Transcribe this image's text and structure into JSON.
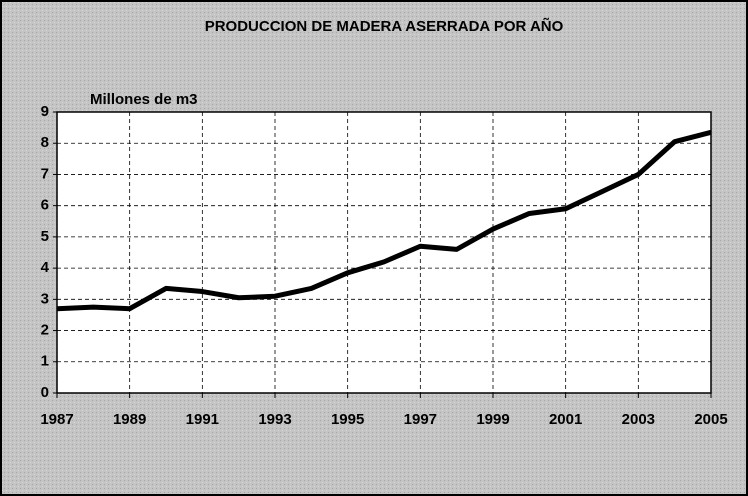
{
  "chart_data": {
    "type": "line",
    "title": "PRODUCCION DE MADERA ASERRADA POR AÑO",
    "y_label": "Millones de m3",
    "x": [
      1987,
      1988,
      1989,
      1990,
      1991,
      1992,
      1993,
      1994,
      1995,
      1996,
      1997,
      1998,
      1999,
      2000,
      2001,
      2002,
      2003,
      2004,
      2005
    ],
    "series": [
      {
        "name": null,
        "color": "#000000",
        "values": [
          2.7,
          2.75,
          2.7,
          3.35,
          3.25,
          3.05,
          3.1,
          3.35,
          3.85,
          4.2,
          4.7,
          4.6,
          5.25,
          5.75,
          5.9,
          6.45,
          7.0,
          8.05,
          8.35
        ]
      }
    ],
    "xlim": [
      1987,
      2005
    ],
    "xticks": [
      1987,
      1989,
      1991,
      1993,
      1995,
      1997,
      1999,
      2001,
      2003,
      2005
    ],
    "ylim": [
      0,
      9
    ],
    "yticks": [
      0,
      1,
      2,
      3,
      4,
      5,
      6,
      7,
      8,
      9
    ],
    "grid": true
  }
}
